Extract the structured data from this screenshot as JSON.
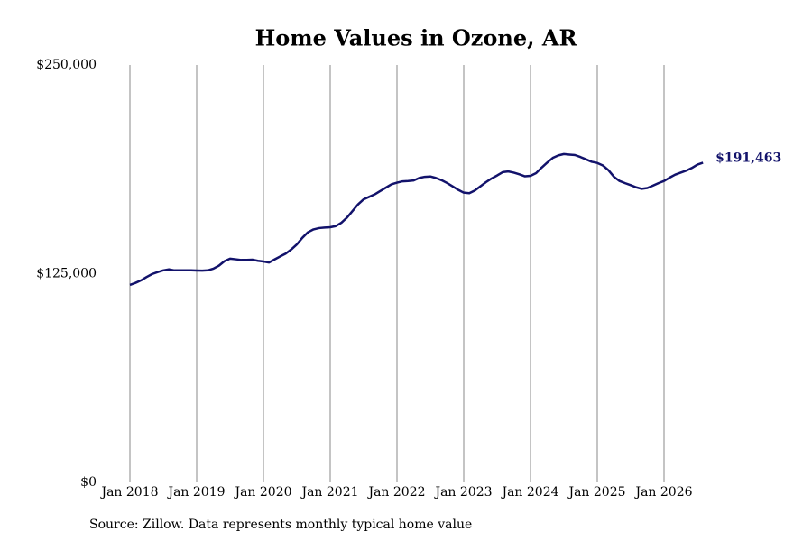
{
  "chart_data": {
    "type": "line",
    "title": "Home Values in Ozone, AR",
    "source": "Source: Zillow. Data represents monthly typical home value",
    "color": "#12126b",
    "grid": "vertical",
    "x": [
      "Jan 2018",
      "Feb 2018",
      "Mar 2018",
      "Apr 2018",
      "May 2018",
      "Jun 2018",
      "Jul 2018",
      "Aug 2018",
      "Sep 2018",
      "Oct 2018",
      "Nov 2018",
      "Dec 2018",
      "Jan 2019",
      "Feb 2019",
      "Mar 2019",
      "Apr 2019",
      "May 2019",
      "Jun 2019",
      "Jul 2019",
      "Aug 2019",
      "Sep 2019",
      "Oct 2019",
      "Nov 2019",
      "Dec 2019",
      "Jan 2020",
      "Feb 2020",
      "Mar 2020",
      "Apr 2020",
      "May 2020",
      "Jun 2020",
      "Jul 2020",
      "Aug 2020",
      "Sep 2020",
      "Oct 2020",
      "Nov 2020",
      "Dec 2020",
      "Jan 2021",
      "Feb 2021",
      "Mar 2021",
      "Apr 2021",
      "May 2021",
      "Jun 2021",
      "Jul 2021",
      "Aug 2021",
      "Sep 2021",
      "Oct 2021",
      "Nov 2021",
      "Dec 2021",
      "Jan 2022",
      "Feb 2022",
      "Mar 2022",
      "Apr 2022",
      "May 2022",
      "Jun 2022",
      "Jul 2022",
      "Aug 2022",
      "Sep 2022",
      "Oct 2022",
      "Nov 2022",
      "Dec 2022",
      "Jan 2023",
      "Feb 2023",
      "Mar 2023",
      "Apr 2023",
      "May 2023",
      "Jun 2023",
      "Jul 2023",
      "Aug 2023",
      "Sep 2023",
      "Oct 2023",
      "Nov 2023",
      "Dec 2023",
      "Jan 2024",
      "Feb 2024",
      "Mar 2024",
      "Apr 2024",
      "May 2024",
      "Jun 2024",
      "Jul 2024",
      "Aug 2024",
      "Sep 2024",
      "Oct 2024",
      "Nov 2024",
      "Dec 2024",
      "Jan 2025",
      "Feb 2025",
      "Mar 2025",
      "Apr 2025",
      "May 2025",
      "Jun 2025",
      "Jul 2025",
      "Aug 2025",
      "Sep 2025",
      "Oct 2025",
      "Nov 2025",
      "Dec 2025",
      "Jan 2026",
      "Feb 2026",
      "Mar 2026",
      "Apr 2026",
      "May 2026",
      "Jun 2026",
      "Jul 2026",
      "Aug 2026"
    ],
    "values": [
      118300,
      119500,
      121000,
      123000,
      124800,
      126000,
      127000,
      127600,
      127000,
      127000,
      127000,
      127000,
      126900,
      126800,
      127000,
      128000,
      129800,
      132500,
      134000,
      133600,
      133200,
      133200,
      133400,
      132700,
      132300,
      131700,
      133500,
      135300,
      137000,
      139500,
      142500,
      146500,
      149800,
      151500,
      152300,
      152600,
      152800,
      153500,
      155500,
      158500,
      162500,
      166500,
      169500,
      171000,
      172500,
      174500,
      176500,
      178500,
      179500,
      180300,
      180500,
      180800,
      182300,
      183000,
      183200,
      182300,
      181000,
      179300,
      177300,
      175200,
      173500,
      173200,
      174800,
      177300,
      179800,
      182000,
      183800,
      185800,
      186200,
      185500,
      184500,
      183300,
      183600,
      185200,
      188500,
      191500,
      194300,
      195800,
      196600,
      196300,
      196000,
      194800,
      193400,
      192000,
      191300,
      189800,
      187000,
      183000,
      180500,
      179200,
      178000,
      176700,
      175800,
      176300,
      177700,
      179200,
      180500,
      182500,
      184300,
      185500,
      186700,
      188300,
      190300,
      191463
    ],
    "value_labels": [
      null,
      null,
      null,
      null,
      null,
      null,
      null,
      null,
      null,
      null,
      null,
      null,
      null,
      null,
      null,
      null,
      null,
      null,
      null,
      null,
      null,
      null,
      null,
      null,
      null,
      null,
      null,
      null,
      null,
      null,
      null,
      null,
      null,
      null,
      null,
      null,
      null,
      null,
      null,
      null,
      null,
      null,
      null,
      null,
      null,
      null,
      null,
      null,
      null,
      null,
      null,
      null,
      null,
      null,
      null,
      null,
      null,
      null,
      null,
      null,
      null,
      null,
      null,
      null,
      null,
      null,
      null,
      null,
      null,
      null,
      null,
      null,
      null,
      null,
      null,
      null,
      null,
      null,
      null,
      null,
      null,
      null,
      null,
      null,
      null,
      null,
      null,
      null,
      null,
      null,
      null,
      null,
      null,
      null,
      null,
      null,
      null,
      null,
      null,
      null,
      null,
      null,
      null,
      "$191,463"
    ],
    "xticks": [
      "Jan 2018",
      "Jan 2019",
      "Jan 2020",
      "Jan 2021",
      "Jan 2022",
      "Jan 2023",
      "Jan 2024",
      "Jan 2025",
      "Jan 2026"
    ],
    "ylim": [
      0,
      250000
    ],
    "yticks": [
      {
        "value": 0,
        "label": "$0"
      },
      {
        "value": 125000,
        "label": "$125,000"
      },
      {
        "value": 250000,
        "label": "$250,000"
      }
    ]
  }
}
